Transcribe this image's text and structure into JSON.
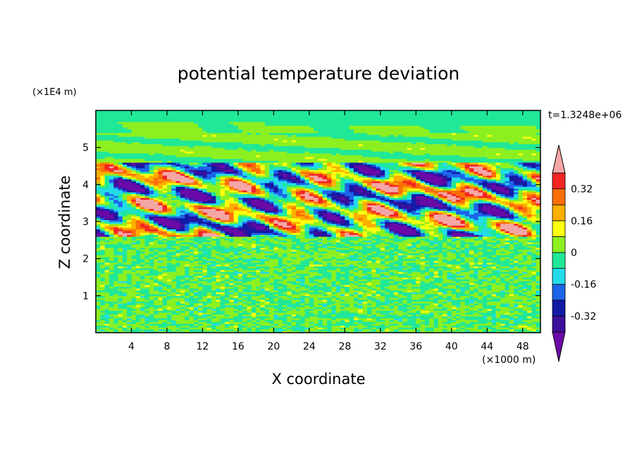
{
  "chart_data": {
    "type": "heatmap",
    "title": "potential temperature deviation",
    "xlabel": "X coordinate",
    "ylabel": "Z coordinate",
    "x_unit": "(×1000 m)",
    "y_unit": "(×1E4 m)",
    "time_label": "t=1.3248e+06",
    "xlim": [
      0,
      50
    ],
    "ylim": [
      0,
      6
    ],
    "x_ticks": [
      "4",
      "8",
      "12",
      "16",
      "20",
      "24",
      "28",
      "32",
      "36",
      "40",
      "44",
      "48"
    ],
    "y_ticks": [
      "1",
      "2",
      "3",
      "4",
      "5"
    ],
    "colorbar": {
      "tick_labels": [
        "0.32",
        "0.16",
        "0",
        "-0.16",
        "-0.32"
      ],
      "tick_values": [
        0.32,
        0.16,
        0,
        -0.16,
        -0.32
      ],
      "level_step": 0.08,
      "colors": [
        "#6a0aa8",
        "#3d109a",
        "#121aa6",
        "#1e64ea",
        "#22dcea",
        "#20e898",
        "#8cf020",
        "#fefe10",
        "#fcb000",
        "#fc6e08",
        "#f22424",
        "#f4a6a6"
      ],
      "extend": "both"
    },
    "regions": [
      {
        "z": [
          5.4,
          6.0
        ],
        "description": "mostly near-zero, green"
      },
      {
        "z": [
          4.6,
          5.4
        ],
        "description": "near-zero with weak bands"
      },
      {
        "z": [
          2.6,
          4.6
        ],
        "description": "strong alternating positive and negative anomalies, range about -0.4 to 0.4"
      },
      {
        "z": [
          0.0,
          2.6
        ],
        "description": "small-scale noise around 0, about -0.1 to 0.1"
      }
    ]
  }
}
